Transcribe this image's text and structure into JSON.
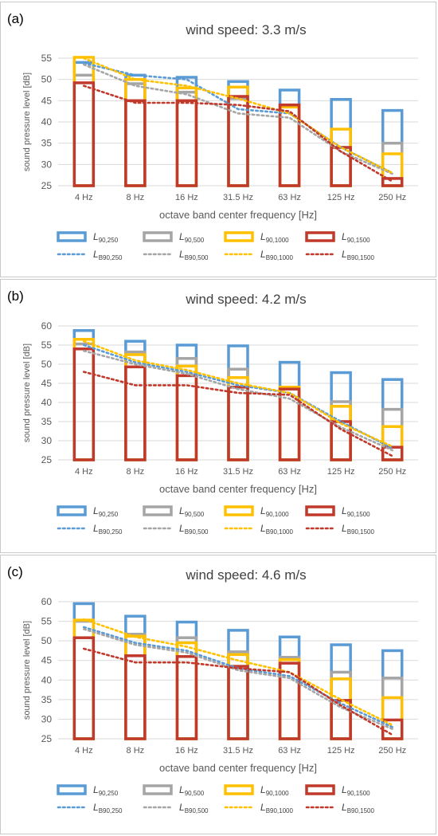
{
  "chart_data": [
    {
      "type": "bar",
      "panel_label": "(a)",
      "title": "wind speed: 3.3 m/s",
      "xlabel": "octave band center frequency [Hz]",
      "ylabel": "sound pressure level [dB]",
      "ylim": [
        25,
        55
      ],
      "yticks": [
        25,
        30,
        35,
        40,
        45,
        50,
        55
      ],
      "categories": [
        "4 Hz",
        "8 Hz",
        "16 Hz",
        "31.5 Hz",
        "63 Hz",
        "125 Hz",
        "250 Hz"
      ],
      "grid": true,
      "legend_position": "bottom",
      "series": [
        {
          "kind": "bar",
          "color": "#5b9bd5",
          "values": [
            54.0,
            51.0,
            50.5,
            49.5,
            47.5,
            45.3,
            42.7
          ]
        },
        {
          "kind": "bar",
          "color": "#a5a5a5",
          "values": [
            51.0,
            49.0,
            47.0,
            45.5,
            44.0,
            34.0,
            35.0
          ]
        },
        {
          "kind": "bar",
          "color": "#ffc000",
          "values": [
            55.2,
            50.0,
            48.0,
            48.2,
            43.5,
            38.3,
            32.5
          ]
        },
        {
          "kind": "bar",
          "color": "#c0392b",
          "values": [
            49.2,
            45.0,
            45.0,
            46.0,
            44.0,
            34.0,
            26.7
          ]
        },
        {
          "kind": "line",
          "color": "#5b9bd5",
          "values": [
            53.8,
            51.0,
            50.0,
            43.0,
            42.0,
            34.0,
            28.0
          ]
        },
        {
          "kind": "line",
          "color": "#a5a5a5",
          "values": [
            53.5,
            48.5,
            46.5,
            42.0,
            41.0,
            33.0,
            27.8
          ]
        },
        {
          "kind": "line",
          "color": "#ffc000",
          "values": [
            55.0,
            50.0,
            48.5,
            45.5,
            42.0,
            34.0,
            28.0
          ]
        },
        {
          "kind": "line",
          "color": "#c0392b",
          "values": [
            48.5,
            44.5,
            44.5,
            44.0,
            42.5,
            33.0,
            26.0
          ]
        }
      ],
      "legend": [
        {
          "main": "L",
          "sub": "90,250"
        },
        {
          "main": "L",
          "sub": "90,500"
        },
        {
          "main": "L",
          "sub": "90,1000"
        },
        {
          "main": "L",
          "sub": "90,1500"
        },
        {
          "main": "L",
          "sub": "B90,250"
        },
        {
          "main": "L",
          "sub": "B90,500"
        },
        {
          "main": "L",
          "sub": "B90,1000"
        },
        {
          "main": "L",
          "sub": "B90,1500"
        }
      ]
    },
    {
      "type": "bar",
      "panel_label": "(b)",
      "title": "wind speed: 4.2 m/s",
      "xlabel": "octave band center frequency [Hz]",
      "ylabel": "sound pressure level [dB]",
      "ylim": [
        25,
        60
      ],
      "yticks": [
        25,
        30,
        35,
        40,
        45,
        50,
        55,
        60
      ],
      "categories": [
        "4 Hz",
        "8 Hz",
        "16 Hz",
        "31.5 Hz",
        "63 Hz",
        "125 Hz",
        "250 Hz"
      ],
      "grid": true,
      "legend_position": "bottom",
      "series": [
        {
          "kind": "bar",
          "color": "#5b9bd5",
          "values": [
            58.8,
            56.0,
            55.0,
            54.8,
            50.5,
            47.8,
            46.0
          ]
        },
        {
          "kind": "bar",
          "color": "#a5a5a5",
          "values": [
            55.3,
            53.2,
            51.5,
            48.7,
            44.0,
            40.2,
            38.2
          ]
        },
        {
          "kind": "bar",
          "color": "#ffc000",
          "values": [
            56.5,
            52.5,
            49.5,
            46.5,
            44.0,
            39.0,
            33.7
          ]
        },
        {
          "kind": "bar",
          "color": "#c0392b",
          "values": [
            54.0,
            49.3,
            47.0,
            44.0,
            43.5,
            35.0,
            28.3
          ]
        },
        {
          "kind": "line",
          "color": "#5b9bd5",
          "values": [
            55.0,
            50.5,
            48.0,
            44.5,
            42.5,
            35.0,
            28.0
          ]
        },
        {
          "kind": "line",
          "color": "#a5a5a5",
          "values": [
            53.5,
            50.0,
            47.5,
            43.5,
            41.0,
            33.5,
            27.5
          ]
        },
        {
          "kind": "line",
          "color": "#ffc000",
          "values": [
            56.0,
            51.0,
            48.5,
            45.0,
            42.5,
            34.5,
            28.5
          ]
        },
        {
          "kind": "line",
          "color": "#c0392b",
          "values": [
            48.0,
            44.5,
            44.5,
            42.5,
            42.0,
            33.0,
            26.0
          ]
        }
      ],
      "legend": [
        {
          "main": "L",
          "sub": "90,250"
        },
        {
          "main": "L",
          "sub": "90,500"
        },
        {
          "main": "L",
          "sub": "90,1000"
        },
        {
          "main": "L",
          "sub": "90,1500"
        },
        {
          "main": "L",
          "sub": "B90,250"
        },
        {
          "main": "L",
          "sub": "B90,500"
        },
        {
          "main": "L",
          "sub": "B90,1000"
        },
        {
          "main": "L",
          "sub": "B90,1500"
        }
      ]
    },
    {
      "type": "bar",
      "panel_label": "(c)",
      "title": "wind speed: 4.6 m/s",
      "xlabel": "octave band center frequency [Hz]",
      "ylabel": "sound pressure level [dB]",
      "ylim": [
        25,
        60
      ],
      "yticks": [
        25,
        30,
        35,
        40,
        45,
        50,
        55,
        60
      ],
      "categories": [
        "4 Hz",
        "8 Hz",
        "16 Hz",
        "31.5 Hz",
        "63 Hz",
        "125 Hz",
        "250 Hz"
      ],
      "grid": true,
      "legend_position": "bottom",
      "series": [
        {
          "kind": "bar",
          "color": "#5b9bd5",
          "values": [
            59.5,
            56.3,
            54.8,
            52.7,
            51.0,
            49.0,
            47.5
          ]
        },
        {
          "kind": "bar",
          "color": "#a5a5a5",
          "values": [
            55.0,
            51.7,
            50.8,
            47.2,
            45.8,
            42.0,
            40.5
          ]
        },
        {
          "kind": "bar",
          "color": "#ffc000",
          "values": [
            55.3,
            51.2,
            49.5,
            46.5,
            45.2,
            40.3,
            35.5
          ]
        },
        {
          "kind": "bar",
          "color": "#c0392b",
          "values": [
            50.8,
            46.2,
            46.0,
            43.5,
            44.3,
            34.8,
            29.8
          ]
        },
        {
          "kind": "line",
          "color": "#5b9bd5",
          "values": [
            53.5,
            49.5,
            47.5,
            43.0,
            41.0,
            34.0,
            28.0
          ]
        },
        {
          "kind": "line",
          "color": "#a5a5a5",
          "values": [
            53.0,
            49.0,
            47.0,
            42.5,
            40.5,
            33.0,
            27.5
          ]
        },
        {
          "kind": "line",
          "color": "#ffc000",
          "values": [
            55.5,
            51.0,
            48.5,
            45.0,
            42.0,
            35.0,
            28.5
          ]
        },
        {
          "kind": "line",
          "color": "#c0392b",
          "values": [
            48.0,
            44.5,
            44.5,
            43.0,
            42.0,
            33.5,
            26.0
          ]
        }
      ],
      "legend": [
        {
          "main": "L",
          "sub": "90,250"
        },
        {
          "main": "L",
          "sub": "90,500"
        },
        {
          "main": "L",
          "sub": "90,1000"
        },
        {
          "main": "L",
          "sub": "90,1500"
        },
        {
          "main": "L",
          "sub": "B90,250"
        },
        {
          "main": "L",
          "sub": "B90,500"
        },
        {
          "main": "L",
          "sub": "B90,1000"
        },
        {
          "main": "L",
          "sub": "B90,1500"
        }
      ]
    }
  ]
}
